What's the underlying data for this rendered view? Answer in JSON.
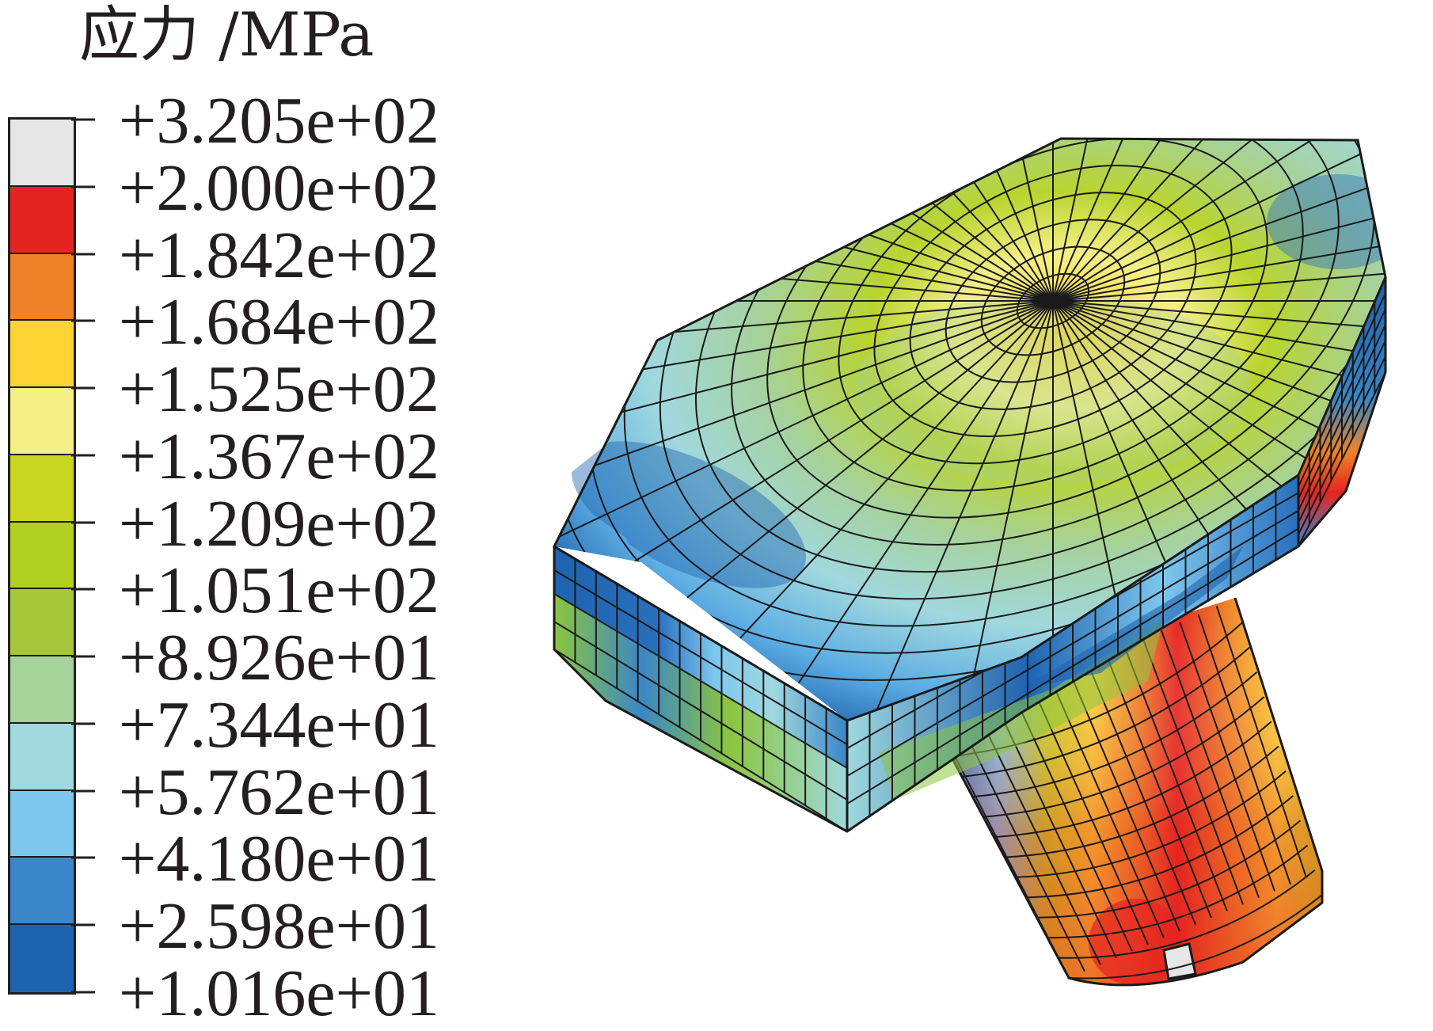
{
  "legend": {
    "title": "应力 /MPa",
    "labels": [
      "+3.205e+02",
      "+2.000e+02",
      "+1.842e+02",
      "+1.684e+02",
      "+1.525e+02",
      "+1.367e+02",
      "+1.209e+02",
      "+1.051e+02",
      "+8.926e+01",
      "+7.344e+01",
      "+5.762e+01",
      "+4.180e+01",
      "+2.598e+01",
      "+1.016e+01"
    ],
    "band_colors": [
      "#e6e6e6",
      "#e52421",
      "#ee8228",
      "#fcd534",
      "#f5ef88",
      "#c8d621",
      "#b1cf1f",
      "#a8c639",
      "#a6d29c",
      "#a0d8de",
      "#7dc7ee",
      "#3a86c8",
      "#1e63b0"
    ]
  },
  "model": {
    "colors": {
      "top_low": "#1e63b0",
      "top_mid": "#a0d8de",
      "top_high": "#fcd534",
      "side_low": "#2a6fbd",
      "side_green": "#8cc63f",
      "shaft_low": "#3a86c8",
      "shaft_orange": "#ee8228",
      "shaft_red": "#e52421",
      "shaft_white": "#e6e6e6",
      "mesh": "#1a1a1a"
    }
  }
}
